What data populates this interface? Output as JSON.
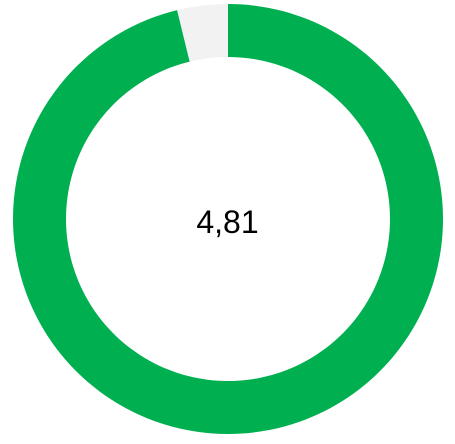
{
  "chart_data": {
    "type": "pie",
    "variant": "donut",
    "center_label": "4,81",
    "slices": [
      {
        "value": 4.81,
        "color": "#00b050"
      },
      {
        "value": 0.19,
        "color": "#f2f2f2"
      }
    ],
    "max": 5
  }
}
